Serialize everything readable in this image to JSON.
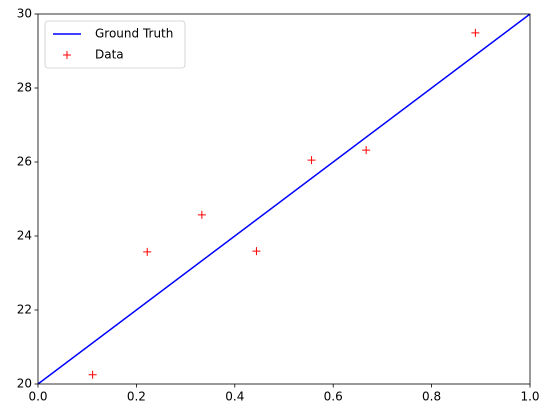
{
  "chart_data": {
    "type": "line",
    "series": [
      {
        "name": "Ground Truth",
        "color": "#0000ff",
        "style": "line",
        "x": [
          0,
          1
        ],
        "values": [
          20,
          30
        ]
      },
      {
        "name": "Data",
        "color": "#ff0000",
        "style": "plus",
        "x": [
          0.111,
          0.222,
          0.333,
          0.444,
          0.556,
          0.667,
          0.889
        ],
        "values": [
          20.25,
          23.57,
          24.57,
          23.59,
          26.05,
          26.32,
          29.49
        ]
      }
    ],
    "xlim": [
      0,
      1
    ],
    "ylim": [
      20,
      30
    ],
    "xticks": [
      {
        "value": 0,
        "label": "0.0"
      },
      0.2,
      0.4,
      0.6,
      0.8,
      {
        "value": 1,
        "label": "1.0"
      }
    ],
    "yticks": [
      20,
      22,
      24,
      26,
      28,
      30
    ],
    "legend": "upper-left"
  }
}
